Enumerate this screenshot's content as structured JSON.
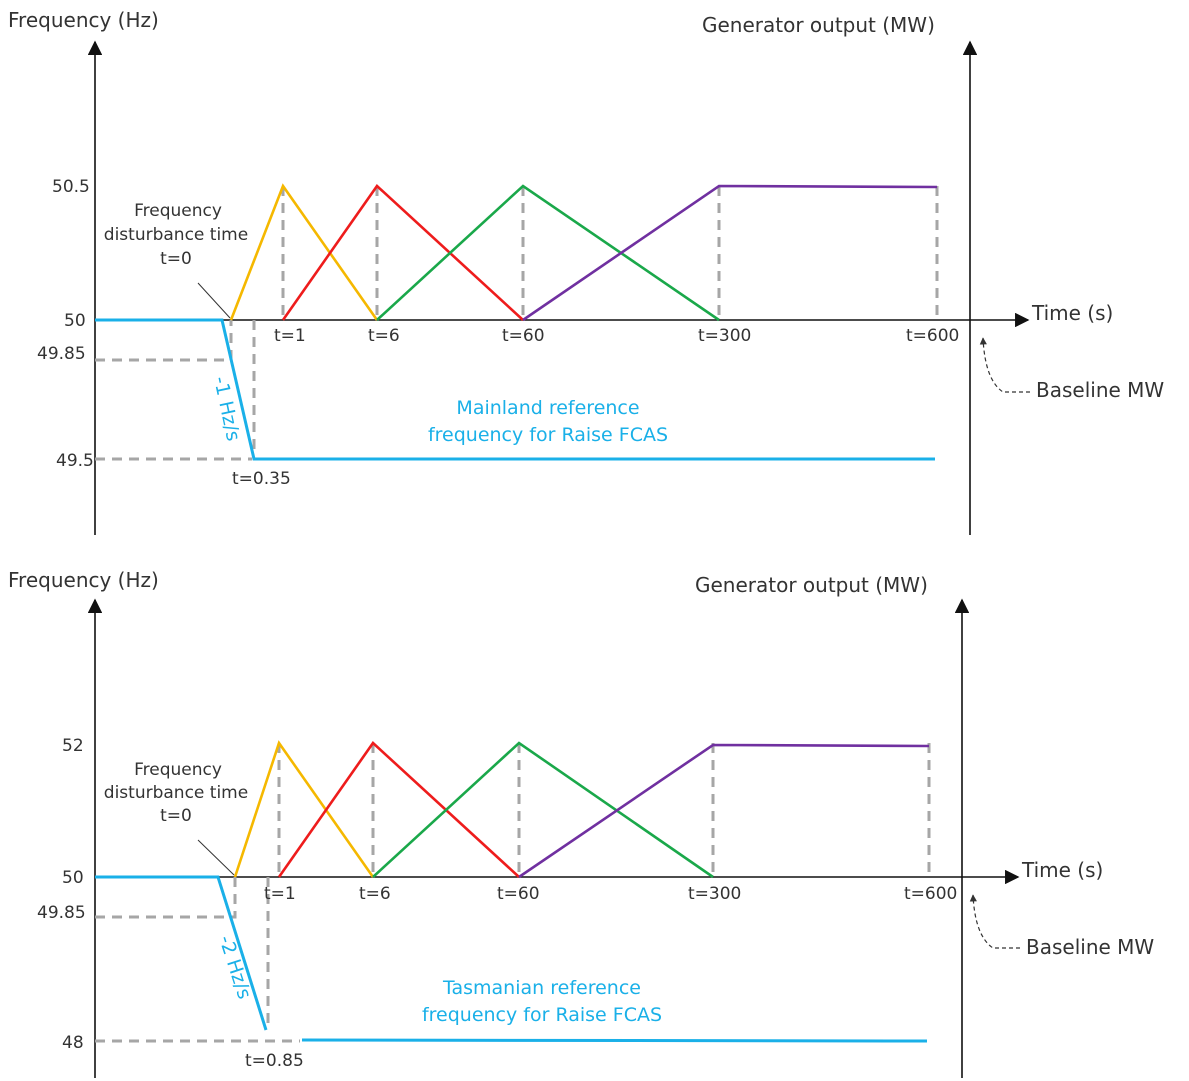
{
  "colors": {
    "reference": "#1ab0e8",
    "dashes": "#a6a6a6",
    "fcas_fast": "#f5b800",
    "fcas_slow": "#ee1c1c",
    "fcas_delayed": "#1aa84a",
    "fcas_long": "#7030a0"
  },
  "panels": [
    {
      "freq_axis_label": "Frequency (Hz)",
      "gen_axis_label": "Generator output (MW)",
      "time_axis_label": "Time (s)",
      "baseline_label": "Baseline MW",
      "y_ticks": {
        "upper": "50.5",
        "nominal": "50",
        "band": "49.85",
        "lower": "49.5"
      },
      "disturbance": {
        "line1": "Frequency",
        "line2": "disturbance time",
        "line3": "t=0"
      },
      "t_labels": [
        "t=1",
        "t=6",
        "t=60",
        "t=300",
        "t=600"
      ],
      "ramp_end_label": "t=0.35",
      "ramp_rate_label": "-1 Hz/s",
      "reference": {
        "line1": "Mainland reference",
        "line2": "frequency for Raise FCAS"
      }
    },
    {
      "freq_axis_label": "Frequency (Hz)",
      "gen_axis_label": "Generator output (MW)",
      "time_axis_label": "Time (s)",
      "baseline_label": "Baseline MW",
      "y_ticks": {
        "upper": "52",
        "nominal": "50",
        "band": "49.85",
        "lower": "48"
      },
      "disturbance": {
        "line1": "Frequency",
        "line2": "disturbance time",
        "line3": "t=0"
      },
      "t_labels": [
        "t=1",
        "t=6",
        "t=60",
        "t=300",
        "t=600"
      ],
      "ramp_end_label": "t=0.85",
      "ramp_rate_label": "-2 Hz/s",
      "reference": {
        "line1": "Tasmanian reference",
        "line2": "frequency for Raise FCAS"
      }
    }
  ]
}
